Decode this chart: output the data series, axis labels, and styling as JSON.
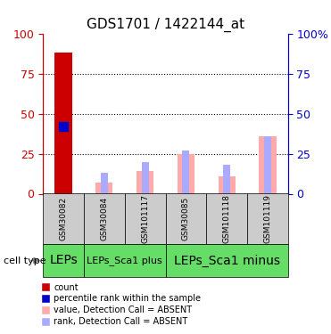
{
  "title": "GDS1701 / 1422144_at",
  "samples": [
    "GSM30082",
    "GSM30084",
    "GSM101117",
    "GSM30085",
    "GSM101118",
    "GSM101119"
  ],
  "count_values": [
    88,
    0,
    0,
    0,
    0,
    0
  ],
  "percentile_rank": [
    42,
    0,
    0,
    0,
    0,
    0
  ],
  "value_absent": [
    0,
    7,
    14,
    25,
    11,
    36
  ],
  "rank_absent": [
    0,
    13,
    20,
    27,
    18,
    36
  ],
  "cell_types": [
    {
      "label": "LEPs",
      "start": 0,
      "end": 1,
      "fontsize": 10
    },
    {
      "label": "LEPs_Sca1 plus",
      "start": 1,
      "end": 3,
      "fontsize": 8
    },
    {
      "label": "LEPs_Sca1 minus",
      "start": 3,
      "end": 6,
      "fontsize": 10
    }
  ],
  "bar_width": 0.35,
  "ylim": [
    0,
    100
  ],
  "yticks": [
    0,
    25,
    50,
    75,
    100
  ],
  "color_count": "#cc0000",
  "color_rank": "#0000cc",
  "color_value_absent": "#ffaaaa",
  "color_rank_absent": "#aaaaff",
  "color_celltype_bg": "#66dd66",
  "color_sample_bg": "#cccccc",
  "legend_items": [
    {
      "color": "#cc0000",
      "label": "count"
    },
    {
      "color": "#0000cc",
      "label": "percentile rank within the sample"
    },
    {
      "color": "#ffaaaa",
      "label": "value, Detection Call = ABSENT"
    },
    {
      "color": "#aaaaff",
      "label": "rank, Detection Call = ABSENT"
    }
  ]
}
